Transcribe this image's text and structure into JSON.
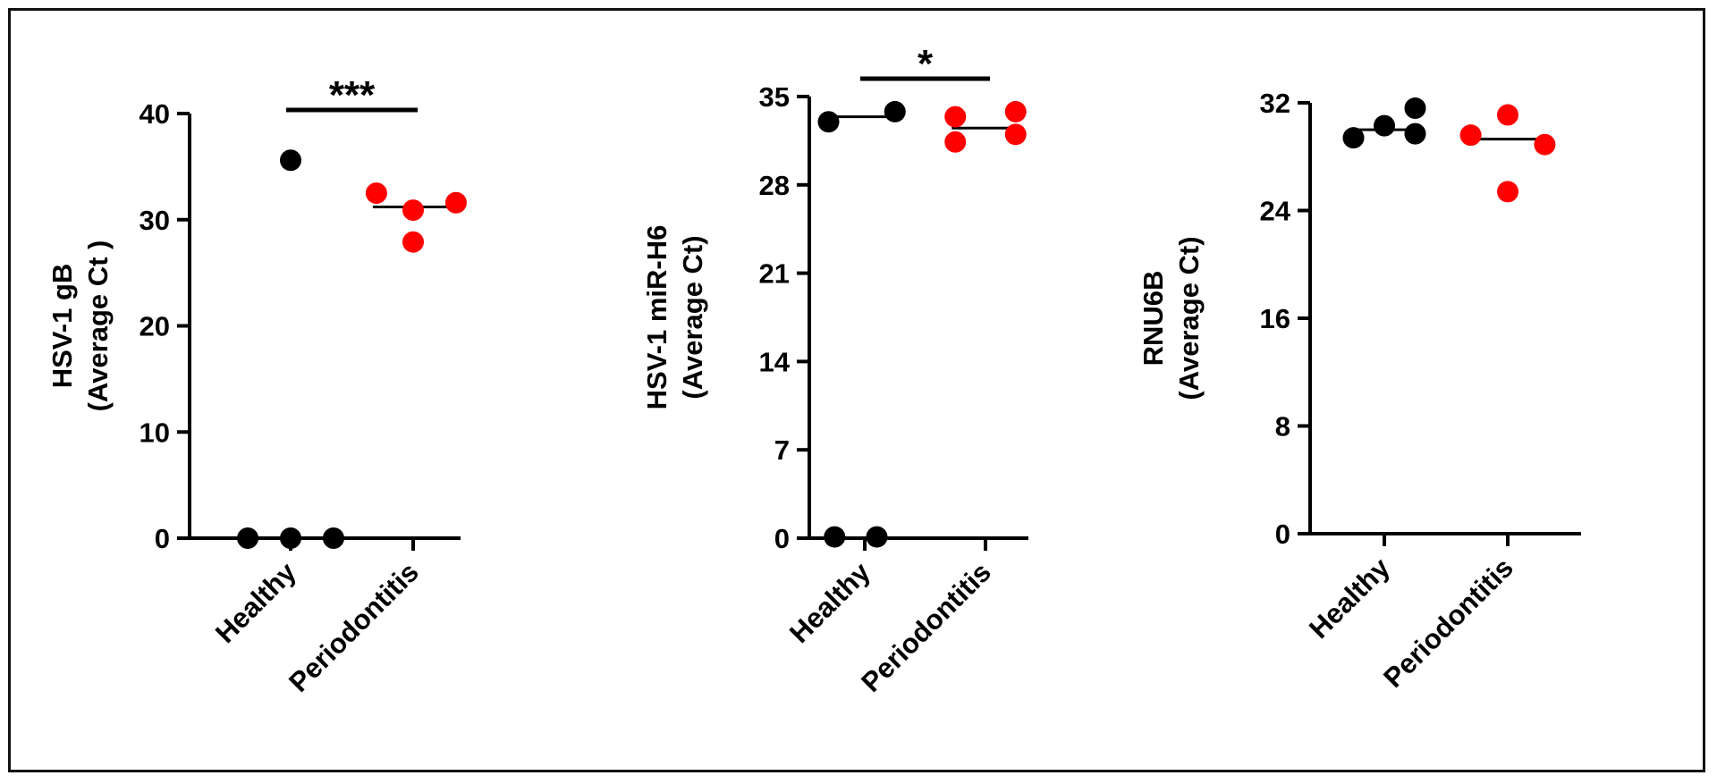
{
  "chart_data": [
    {
      "type": "scatter",
      "categories": [
        "Healthy",
        "Periodontitis"
      ],
      "ylabel_line1": "HSV-1 gB",
      "ylabel_line2": "(Average Ct )",
      "ylim": [
        0,
        40
      ],
      "yticks": [
        0,
        10,
        20,
        30,
        40
      ],
      "significance": "***",
      "series": [
        {
          "category": "Healthy",
          "color": "#000000",
          "points": [
            {
              "x": 0.65,
              "y": 0
            },
            {
              "x": 1.0,
              "y": 0
            },
            {
              "x": 1.35,
              "y": 0
            },
            {
              "x": 1.0,
              "y": 35.6
            }
          ],
          "median": null
        },
        {
          "category": "Periodontitis",
          "color": "#ff0000",
          "points": [
            {
              "x": 1.7,
              "y": 32.5
            },
            {
              "x": 2.35,
              "y": 31.6
            },
            {
              "x": 2.0,
              "y": 30.9
            },
            {
              "x": 2.0,
              "y": 27.9
            }
          ],
          "median": 31.2
        }
      ]
    },
    {
      "type": "scatter",
      "categories": [
        "Healthy",
        "Periodontitis"
      ],
      "ylabel_line1": "HSV-1 miR-H6",
      "ylabel_line2": "(Average Ct)",
      "ylim": [
        0,
        35
      ],
      "yticks": [
        0,
        7,
        14,
        21,
        28,
        35
      ],
      "significance": "*",
      "series": [
        {
          "category": "Healthy",
          "color": "#000000",
          "points": [
            {
              "x": 0.75,
              "y": 0.1
            },
            {
              "x": 1.1,
              "y": 0.1
            },
            {
              "x": 0.7,
              "y": 33.0
            },
            {
              "x": 1.25,
              "y": 33.8
            }
          ],
          "median": 33.4
        },
        {
          "category": "Periodontitis",
          "color": "#ff0000",
          "points": [
            {
              "x": 1.75,
              "y": 33.4
            },
            {
              "x": 2.25,
              "y": 33.8
            },
            {
              "x": 1.75,
              "y": 31.4
            },
            {
              "x": 2.25,
              "y": 32.0
            }
          ],
          "median": 32.5
        }
      ]
    },
    {
      "type": "scatter",
      "categories": [
        "Healthy",
        "Periodontitis"
      ],
      "ylabel_line1": "RNU6B",
      "ylabel_line2": "(Average Ct)",
      "ylim": [
        0,
        32
      ],
      "yticks": [
        0,
        8,
        16,
        24,
        32
      ],
      "significance": "",
      "series": [
        {
          "category": "Healthy",
          "color": "#000000",
          "points": [
            {
              "x": 0.75,
              "y": 29.4
            },
            {
              "x": 1.0,
              "y": 30.3
            },
            {
              "x": 1.25,
              "y": 31.6
            },
            {
              "x": 1.25,
              "y": 29.7
            }
          ],
          "median": 30.0
        },
        {
          "category": "Periodontitis",
          "color": "#ff0000",
          "points": [
            {
              "x": 1.7,
              "y": 29.6
            },
            {
              "x": 2.0,
              "y": 31.1
            },
            {
              "x": 2.3,
              "y": 28.9
            },
            {
              "x": 2.0,
              "y": 25.4
            }
          ],
          "median": 29.3
        }
      ]
    }
  ]
}
